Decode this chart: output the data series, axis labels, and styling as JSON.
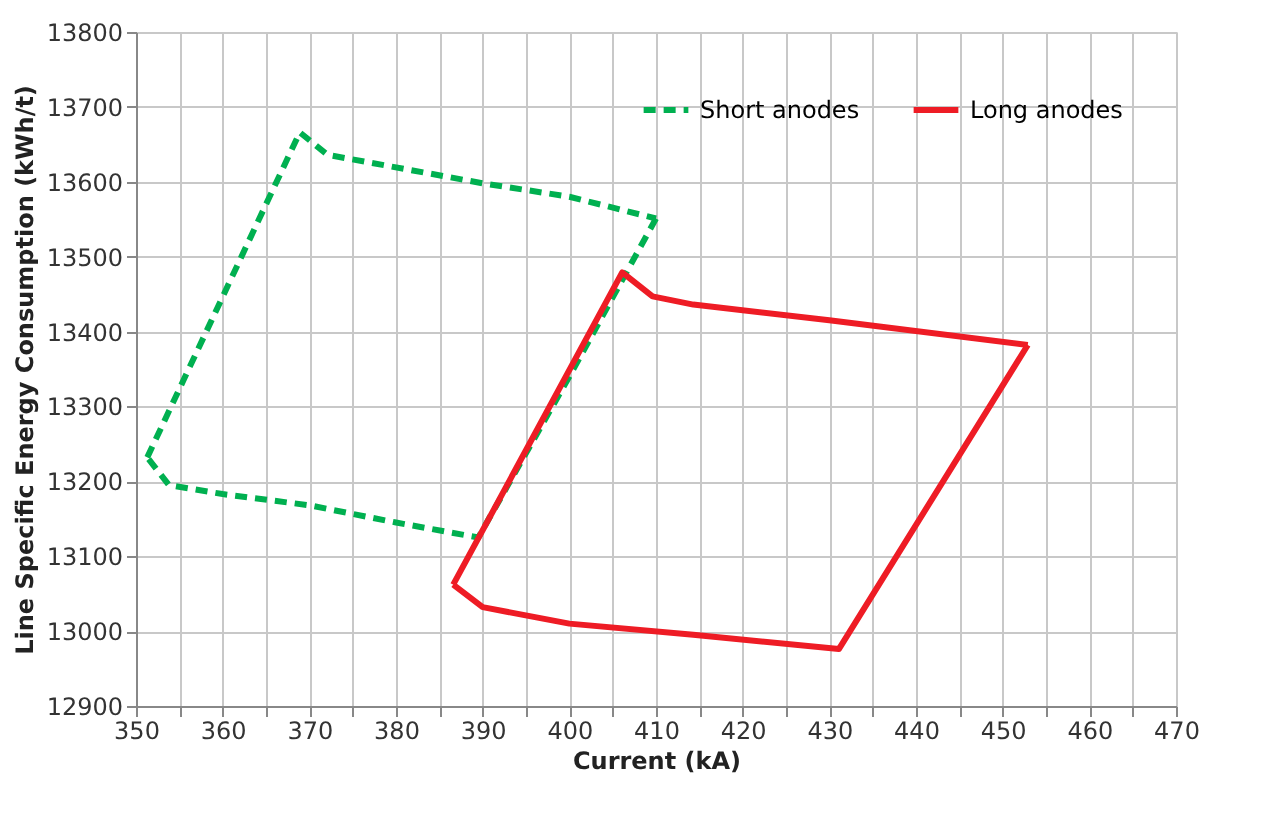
{
  "chart_data": {
    "type": "line",
    "xlabel": "Current (kA)",
    "ylabel": "Line Specific Energy Consumption (kWh/t)",
    "xlim": [
      350,
      470
    ],
    "ylim": [
      12900,
      13800
    ],
    "xticks": [
      350,
      {
        "value": 355,
        "label": null
      },
      360,
      {
        "value": 365,
        "label": null
      },
      370,
      {
        "value": 375,
        "label": null
      },
      380,
      {
        "value": 385,
        "label": null
      },
      390,
      {
        "value": 395,
        "label": null
      },
      400,
      {
        "value": 405,
        "label": null
      },
      410,
      {
        "value": 415,
        "label": null
      },
      420,
      {
        "value": 425,
        "label": null
      },
      430,
      {
        "value": 435,
        "label": null
      },
      440,
      {
        "value": 445,
        "label": null
      },
      450,
      {
        "value": 455,
        "label": null
      },
      460,
      {
        "value": 465,
        "label": null
      },
      470
    ],
    "yticks": [
      12900,
      13000,
      13100,
      13200,
      13300,
      13400,
      13500,
      13600,
      13700,
      13800
    ],
    "grid": true,
    "legend": "top right",
    "marker": "none",
    "series": [
      {
        "name": "Short anodes",
        "color": "#00b050",
        "line_style": "dashed",
        "x": [
          351.3,
          368.9,
          372.1,
          390,
          400,
          410
        ],
        "values": [
          13232,
          13666,
          13636,
          13598,
          13580,
          13551
        ]
      },
      {
        "color": "#00b050",
        "line_style": "dashed",
        "x": [
          410,
          400,
          389.5,
          380,
          370,
          360,
          353.8,
          351.3
        ],
        "values": [
          13551,
          13340,
          13125,
          13145,
          13168,
          13183,
          13195,
          13232
        ]
      },
      {
        "name": "Long anodes",
        "color": "#ee1c25",
        "line_style": "solid",
        "x": [
          386.6,
          406.1,
          409.6,
          414.3,
          430,
          452.9
        ],
        "values": [
          13062,
          13479,
          13447,
          13436,
          13415,
          13382
        ]
      },
      {
        "color": "#ee1c25",
        "line_style": "solid",
        "x": [
          452.9,
          431.1,
          414.3,
          400,
          390,
          386.6
        ],
        "values": [
          13382,
          12976,
          12995,
          13010,
          13032,
          13062
        ]
      }
    ]
  }
}
